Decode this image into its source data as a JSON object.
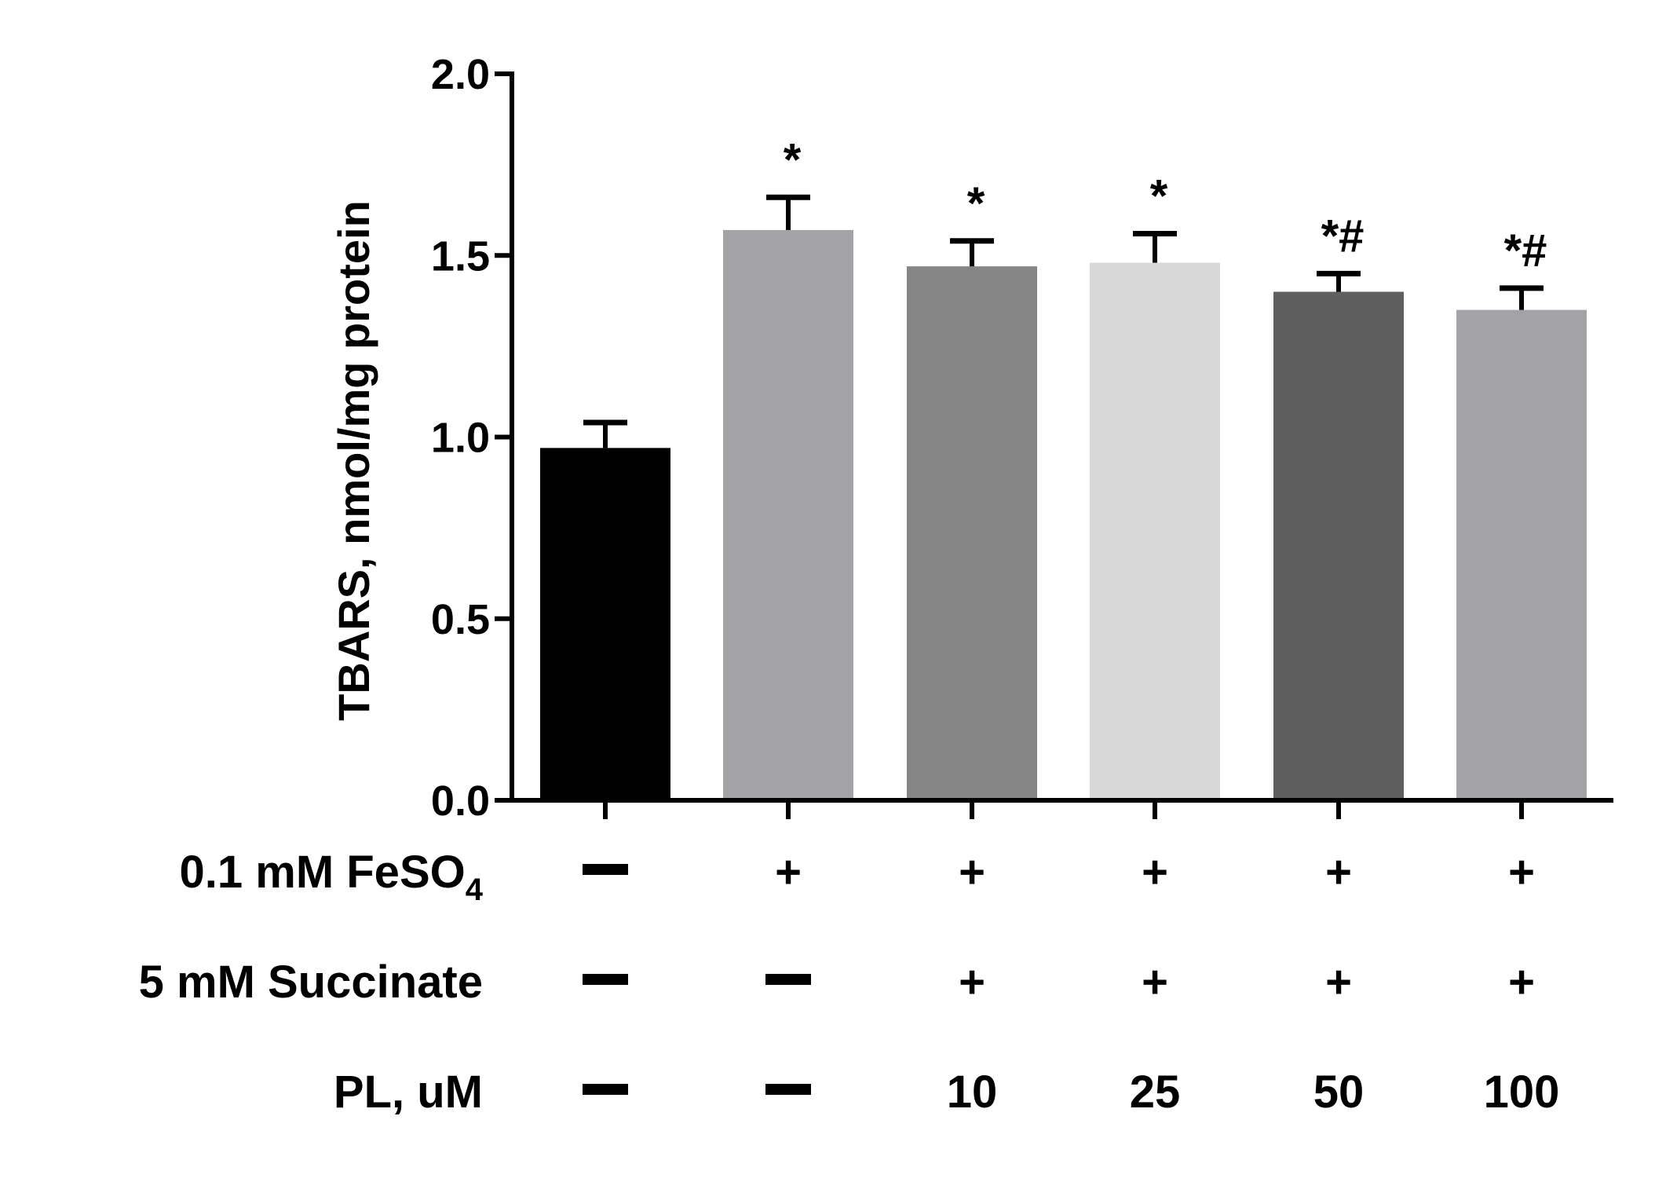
{
  "chart_data": {
    "type": "bar",
    "ylabel": "TBARS, nmol/mg protein",
    "ylim": [
      0,
      2.0
    ],
    "yticks": [
      "0.0",
      "0.5",
      "1.0",
      "1.5",
      "2.0"
    ],
    "grid": false,
    "legend": "none",
    "bars": [
      {
        "value": 0.97,
        "error": 0.07,
        "color": "#000000",
        "annotation": ""
      },
      {
        "value": 1.57,
        "error": 0.09,
        "color": "#a3a3a7",
        "annotation": "*"
      },
      {
        "value": 1.47,
        "error": 0.07,
        "color": "#858585",
        "annotation": "*"
      },
      {
        "value": 1.48,
        "error": 0.08,
        "color": "#d8d8d8",
        "annotation": "*"
      },
      {
        "value": 1.4,
        "error": 0.05,
        "color": "#5f5f5f",
        "annotation": "*#"
      },
      {
        "value": 1.35,
        "error": 0.06,
        "color": "#a3a3a7",
        "annotation": "*#"
      }
    ],
    "conditions": [
      {
        "label": "0.1 mM FeSO",
        "subscript": "4",
        "values": [
          "—",
          "+",
          "+",
          "+",
          "+",
          "+"
        ]
      },
      {
        "label": "5 mM Succinate",
        "subscript": "",
        "values": [
          "—",
          "—",
          "+",
          "+",
          "+",
          "+"
        ]
      },
      {
        "label": "PL, uM",
        "subscript": "",
        "values": [
          "—",
          "—",
          "10",
          "25",
          "50",
          "100"
        ]
      }
    ]
  }
}
